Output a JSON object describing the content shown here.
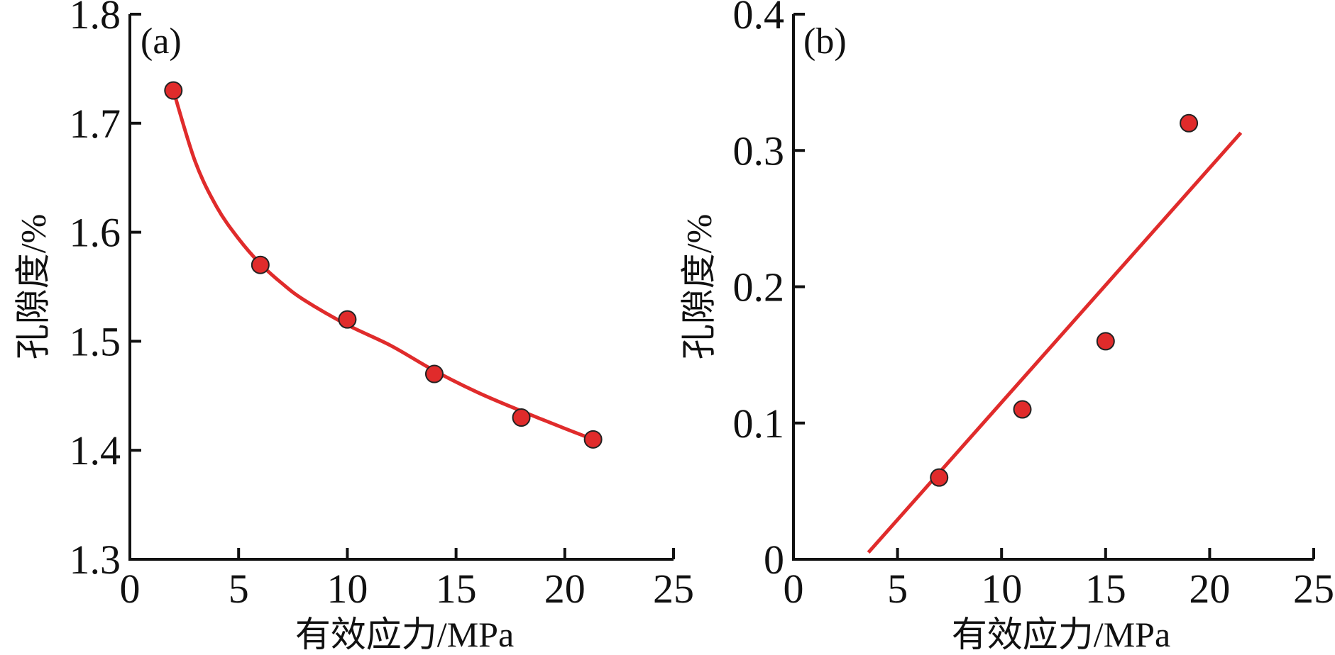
{
  "chart_data": [
    {
      "panel_label": "(a)",
      "type": "scatter",
      "x_tick_labels": [
        "0",
        "5",
        "10",
        "15",
        "20",
        "25"
      ],
      "y_tick_labels": [
        "1.3",
        "1.4",
        "1.5",
        "1.6",
        "1.7",
        "1.8"
      ],
      "x_ticks": [
        0,
        5,
        10,
        15,
        20,
        25
      ],
      "y_ticks": [
        1.3,
        1.4,
        1.5,
        1.6,
        1.7,
        1.8
      ],
      "xlabel": "有效应力/MPa",
      "ylabel": "孔隙度/%",
      "xlim": [
        0,
        25
      ],
      "ylim": [
        1.3,
        1.8
      ],
      "points": [
        {
          "x": 2.0,
          "y": 1.73
        },
        {
          "x": 6.0,
          "y": 1.57
        },
        {
          "x": 10.0,
          "y": 1.52
        },
        {
          "x": 14.0,
          "y": 1.47
        },
        {
          "x": 18.0,
          "y": 1.43
        },
        {
          "x": 21.3,
          "y": 1.41
        }
      ],
      "fit": {
        "kind": "power",
        "x": [
          2.0,
          3.0,
          4.0,
          5.0,
          6.0,
          7.0,
          8.0,
          10.0,
          12.0,
          14.0,
          16.0,
          18.0,
          20.0,
          21.3
        ],
        "y": [
          1.73,
          1.665,
          1.623,
          1.594,
          1.571,
          1.553,
          1.538,
          1.515,
          1.496,
          1.473,
          1.453,
          1.436,
          1.42,
          1.41
        ]
      },
      "grid": false,
      "colors": {
        "marker": "#e02b2b",
        "marker_edge": "#222222",
        "fit_line": "#e02b2b"
      }
    },
    {
      "panel_label": "(b)",
      "type": "scatter",
      "x_tick_labels": [
        "0",
        "5",
        "10",
        "15",
        "20",
        "25"
      ],
      "y_tick_labels": [
        "0",
        "0.1",
        "0.2",
        "0.3",
        "0.4"
      ],
      "x_ticks": [
        0,
        5,
        10,
        15,
        20,
        25
      ],
      "y_ticks": [
        0,
        0.1,
        0.2,
        0.3,
        0.4
      ],
      "xlabel": "有效应力/MPa",
      "ylabel": "孔隙度/%",
      "xlim": [
        0,
        25
      ],
      "ylim": [
        0,
        0.4
      ],
      "points": [
        {
          "x": 7.0,
          "y": 0.06
        },
        {
          "x": 11.0,
          "y": 0.11
        },
        {
          "x": 15.0,
          "y": 0.16
        },
        {
          "x": 19.0,
          "y": 0.32
        }
      ],
      "fit": {
        "kind": "linear",
        "x": [
          3.6,
          21.5
        ],
        "y": [
          0.005,
          0.313
        ]
      },
      "grid": false,
      "colors": {
        "marker": "#e02b2b",
        "marker_edge": "#222222",
        "fit_line": "#e02b2b"
      }
    }
  ]
}
